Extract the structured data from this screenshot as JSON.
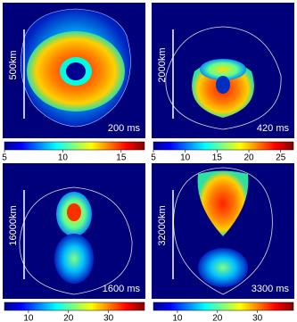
{
  "panels": [
    {
      "scale": "500km",
      "time": "200 ms",
      "colorbar": {
        "lim": [
          5,
          17
        ],
        "ticks": [
          5,
          10,
          15
        ]
      }
    },
    {
      "scale": "2000km",
      "time": "420 ms",
      "colorbar": {
        "lim": [
          5,
          27
        ],
        "ticks": [
          5,
          10,
          15,
          20,
          25
        ]
      }
    },
    {
      "scale": "16000km",
      "time": "1600 ms",
      "colorbar": {
        "lim": [
          4,
          39
        ],
        "ticks": [
          10,
          20,
          30
        ]
      }
    },
    {
      "scale": "32000km",
      "time": "3300 ms",
      "colorbar": {
        "lim": [
          4,
          39
        ],
        "ticks": [
          10,
          20,
          30
        ]
      }
    }
  ]
}
